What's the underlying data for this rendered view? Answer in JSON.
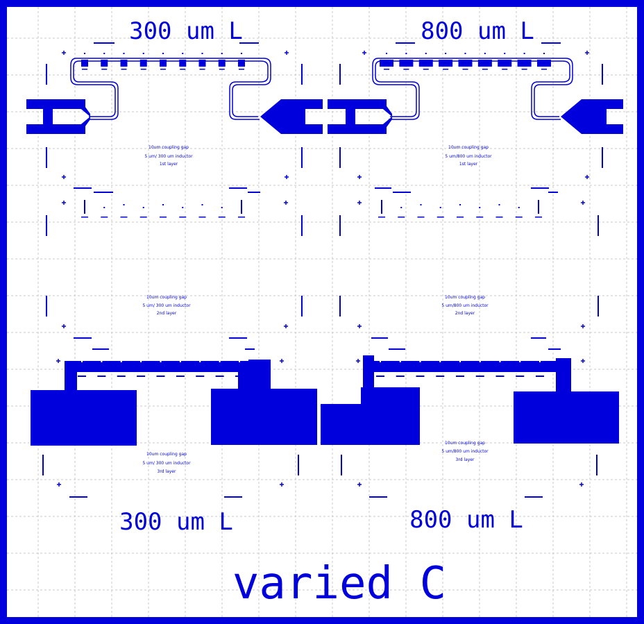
{
  "colors": {
    "blue": "#0000dd",
    "grid": "#c8c8c8",
    "bg": "#ffffff"
  },
  "titles": {
    "top_left": "300 um L",
    "top_right": "800 um L",
    "bottom_left": "300 um L",
    "bottom_right": "800 um L",
    "footer": "varied C"
  },
  "quadrants": {
    "tl_layer1": [
      "10um coupling gap",
      "5 um/ 300 um inductor",
      "1st layer"
    ],
    "tr_layer1": [
      "10um coupling gap",
      "5 um/800 um inductor",
      "1st layer"
    ],
    "tl_layer2": [
      "10um coupling gap",
      "5 um/ 300 um inductor",
      "2nd layer"
    ],
    "tr_layer2": [
      "10um coupling gap",
      "5 um/800 um inductor",
      "2nd layer"
    ],
    "bl_layer3": [
      "10um coupling gap",
      "5 um/ 300 um inductor",
      "3rd layer"
    ],
    "br_layer3": [
      "10um coupling gap",
      "5 um/800 um inductor",
      "3rd layer"
    ]
  }
}
